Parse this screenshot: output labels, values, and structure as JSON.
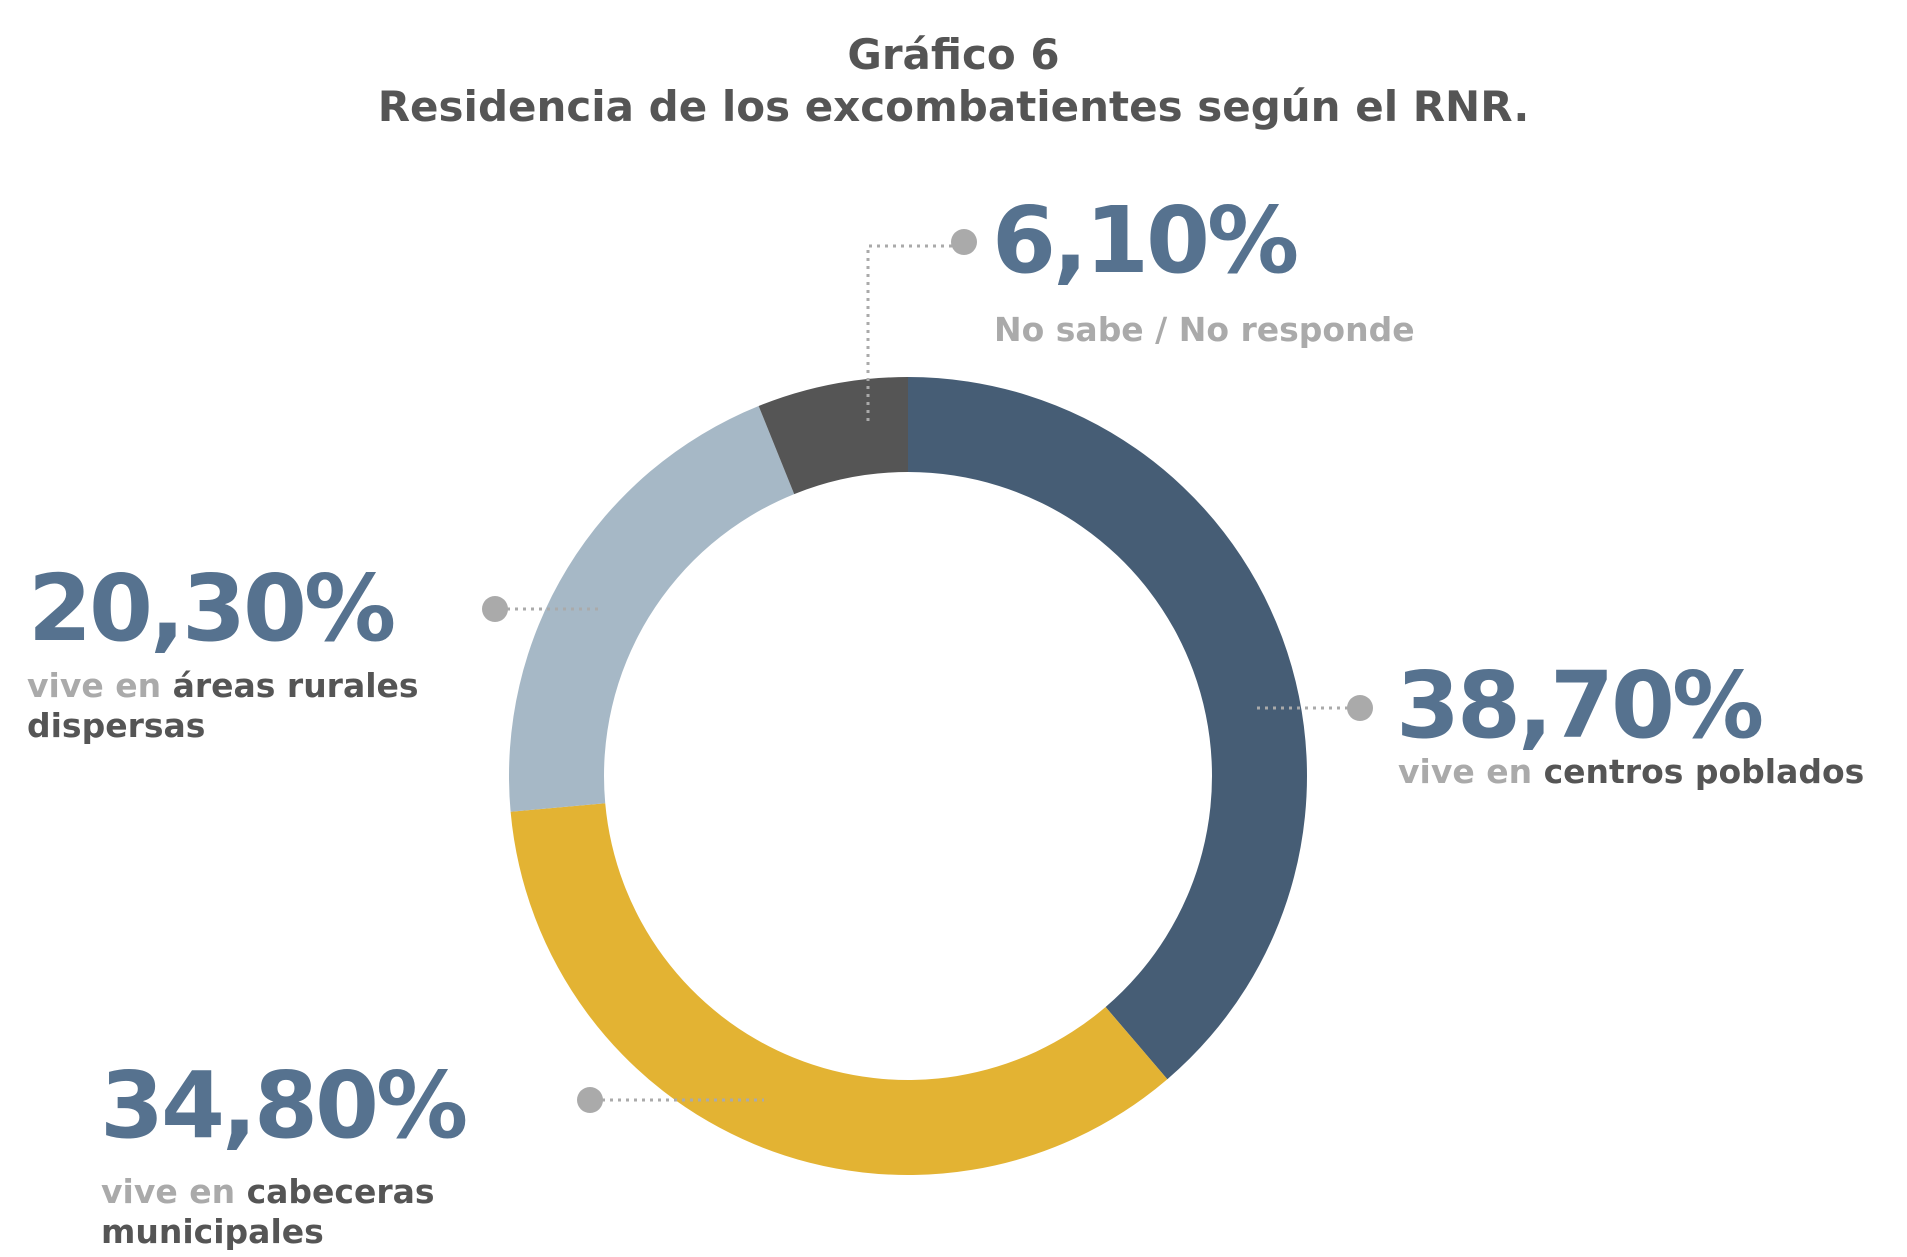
{
  "chart_data": {
    "type": "donut",
    "title": "Gráfico 6",
    "subtitle": "Residencia de los excombatientes según el RNR.",
    "categories": [
      "centros poblados",
      "cabeceras municipales",
      "áreas rurales dispersas",
      "No sabe / No responde"
    ],
    "category_prefixes": [
      "vive en",
      "vive en",
      "vive en",
      null
    ],
    "values": [
      38.7,
      34.8,
      20.3,
      6.1
    ],
    "value_labels": [
      "38,70%",
      "34,80%",
      "20,30%",
      "6,10%"
    ],
    "colors": [
      "#465d75",
      "#e3b333",
      "#a6b8c6",
      "#555555"
    ]
  }
}
